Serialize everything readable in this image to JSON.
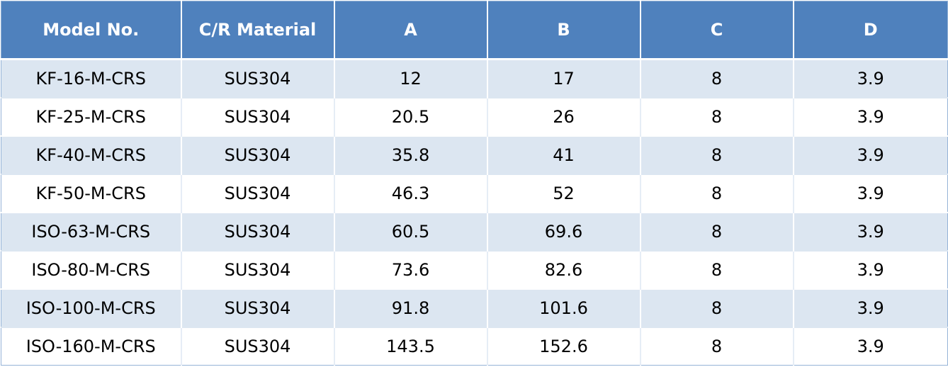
{
  "table": {
    "headers": [
      "Model No.",
      "C/R Material",
      "A",
      "B",
      "C",
      "D"
    ],
    "rows": [
      [
        "KF-16-M-CRS",
        "SUS304",
        "12",
        "17",
        "8",
        "3.9"
      ],
      [
        "KF-25-M-CRS",
        "SUS304",
        "20.5",
        "26",
        "8",
        "3.9"
      ],
      [
        "KF-40-M-CRS",
        "SUS304",
        "35.8",
        "41",
        "8",
        "3.9"
      ],
      [
        "KF-50-M-CRS",
        "SUS304",
        "46.3",
        "52",
        "8",
        "3.9"
      ],
      [
        "ISO-63-M-CRS",
        "SUS304",
        "60.5",
        "69.6",
        "8",
        "3.9"
      ],
      [
        "ISO-80-M-CRS",
        "SUS304",
        "73.6",
        "82.6",
        "8",
        "3.9"
      ],
      [
        "ISO-100-M-CRS",
        "SUS304",
        "91.8",
        "101.6",
        "8",
        "3.9"
      ],
      [
        "ISO-160-M-CRS",
        "SUS304",
        "143.5",
        "152.6",
        "8",
        "3.9"
      ]
    ]
  },
  "colors": {
    "header_bg": "#4f81bd",
    "header_text": "#ffffff",
    "band_row_bg": "#dce6f1",
    "plain_row_bg": "#ffffff"
  }
}
